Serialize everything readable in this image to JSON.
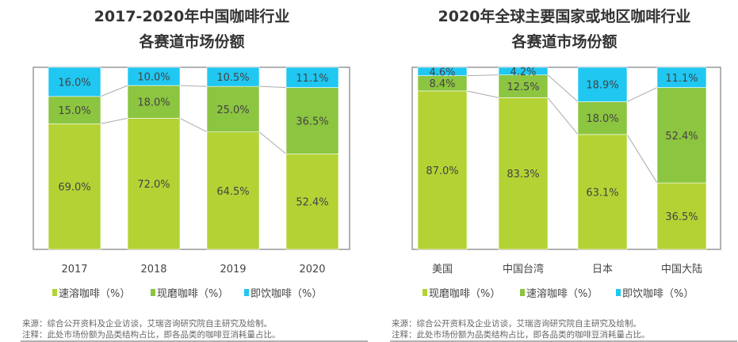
{
  "chart_data": [
    {
      "type": "bar",
      "stacked": true,
      "title": "2017-2020年中国咖啡行业",
      "subtitle": "各赛道市场份额",
      "categories": [
        "2017",
        "2018",
        "2019",
        "2020"
      ],
      "series": [
        {
          "name": "速溶咖啡（%）",
          "color": "#b3d334",
          "values": [
            69.0,
            72.0,
            64.5,
            52.4
          ]
        },
        {
          "name": "现磨咖啡（%）",
          "color": "#8cc540",
          "values": [
            15.0,
            18.0,
            25.0,
            36.5
          ]
        },
        {
          "name": "即饮咖啡（%）",
          "color": "#1fc7f1",
          "values": [
            16.0,
            10.0,
            10.5,
            11.1
          ]
        }
      ],
      "ylim": [
        0,
        100
      ],
      "legend": "bottom",
      "grid": false,
      "footnotes": [
        "来源：综合公开资料及企业访谈，艾瑞咨询研究院自主研究及绘制。",
        "注释：此处市场份额为品类结构占比，即各品类的咖啡豆消耗量占比。"
      ]
    },
    {
      "type": "bar",
      "stacked": true,
      "title": "2020年全球主要国家或地区咖啡行业",
      "subtitle": "各赛道市场份额",
      "categories": [
        "美国",
        "中国台湾",
        "日本",
        "中国大陆"
      ],
      "series": [
        {
          "name": "现磨咖啡（%）",
          "color": "#b3d334",
          "values": [
            87.0,
            83.3,
            63.1,
            36.5
          ]
        },
        {
          "name": "速溶咖啡（%）",
          "color": "#8cc540",
          "values": [
            8.4,
            12.5,
            18.0,
            52.4
          ]
        },
        {
          "name": "即饮咖啡（%）",
          "color": "#1fc7f1",
          "values": [
            4.6,
            4.2,
            18.9,
            11.1
          ]
        }
      ],
      "ylim": [
        0,
        100
      ],
      "legend": "bottom",
      "grid": false,
      "footnotes": [
        "来源：综合公开资料及企业访谈，艾瑞咨询研究院自主研究及绘制。",
        "注释：此处市场份额为品类结构占比，即各品类的咖啡豆消耗量占比。"
      ]
    }
  ]
}
